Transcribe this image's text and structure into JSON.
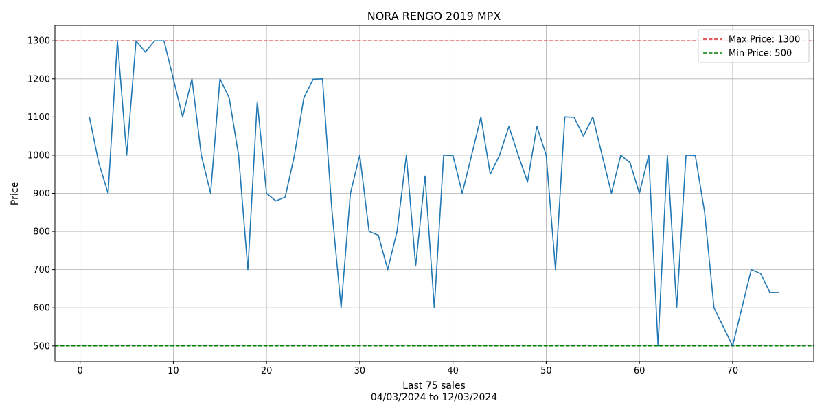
{
  "chart_data": {
    "type": "line",
    "title": "NORA RENGO 2019 MPX",
    "xlabel": "Last 75 sales",
    "xlabel_sub": "04/03/2024 to 12/03/2024",
    "ylabel": "Price",
    "xlim": [
      -2.7,
      78.7
    ],
    "ylim": [
      460,
      1340
    ],
    "xticks": [
      0,
      10,
      20,
      30,
      40,
      50,
      60,
      70
    ],
    "yticks": [
      500,
      600,
      700,
      800,
      900,
      1000,
      1100,
      1200,
      1300
    ],
    "grid": true,
    "legend_position": "top-right",
    "series": [
      {
        "color": "#1f77b4",
        "x": [
          1,
          2,
          3,
          4,
          5,
          6,
          7,
          8,
          9,
          10,
          11,
          12,
          13,
          14,
          15,
          16,
          17,
          18,
          19,
          20,
          21,
          22,
          23,
          24,
          25,
          26,
          27,
          28,
          29,
          30,
          31,
          32,
          33,
          34,
          35,
          36,
          37,
          38,
          39,
          40,
          41,
          42,
          43,
          44,
          45,
          46,
          47,
          48,
          49,
          50,
          51,
          52,
          53,
          54,
          55,
          56,
          57,
          58,
          59,
          60,
          61,
          62,
          63,
          64,
          65,
          66,
          67,
          68,
          69,
          70,
          71,
          72,
          73,
          74,
          75
        ],
        "values": [
          1100,
          980,
          900,
          1300,
          1000,
          1300,
          1270,
          1300,
          1300,
          1200,
          1100,
          1200,
          1000,
          900,
          1200,
          1150,
          1000,
          700,
          1140,
          900,
          880,
          890,
          1000,
          1150,
          1199,
          1200,
          860,
          600,
          900,
          1000,
          800,
          790,
          700,
          800,
          1000,
          710,
          945,
          600,
          1000,
          999,
          900,
          1000,
          1100,
          950,
          1000,
          1075,
          1000,
          930,
          1075,
          1000,
          700,
          1100,
          1099,
          1050,
          1100,
          1000,
          900,
          1000,
          980,
          900,
          1000,
          500,
          1000,
          600,
          1000,
          999,
          850,
          600,
          550,
          500,
          600,
          700,
          690,
          640,
          640
        ]
      }
    ],
    "reference_lines": [
      {
        "label": "Max Price: 1300",
        "value": 1300,
        "color": "#d62728",
        "style": "dashed"
      },
      {
        "label": "Min Price: 500",
        "value": 500,
        "color": "#008000",
        "style": "dashed"
      }
    ]
  }
}
